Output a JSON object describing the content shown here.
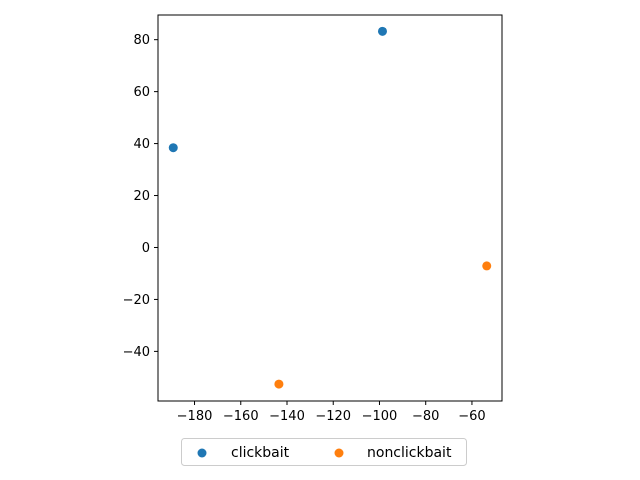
{
  "chart_data": {
    "type": "scatter",
    "title": "",
    "xlabel": "",
    "ylabel": "",
    "xlim": [
      -195.8,
      -47.0
    ],
    "ylim": [
      -59.1,
      89.5
    ],
    "x_ticks": [
      -180,
      -160,
      -140,
      -120,
      -100,
      -80,
      -60
    ],
    "y_ticks": [
      -40,
      -20,
      0,
      20,
      40,
      60,
      80
    ],
    "x_tick_labels": [
      "−180",
      "−160",
      "−140",
      "−120",
      "−100",
      "−80",
      "−60"
    ],
    "y_tick_labels": [
      "−40",
      "−20",
      "0",
      "20",
      "40",
      "60",
      "80"
    ],
    "grid": false,
    "legend_position": "bottom-center",
    "series": [
      {
        "name": "clickbait",
        "color": "#1f77b4",
        "points": [
          {
            "x": -189.2,
            "y": 38.4
          },
          {
            "x": -98.7,
            "y": 83.2
          }
        ]
      },
      {
        "name": "nonclickbait",
        "color": "#ff7f0e",
        "points": [
          {
            "x": -143.5,
            "y": -52.6
          },
          {
            "x": -53.6,
            "y": -7.1
          }
        ]
      }
    ]
  }
}
